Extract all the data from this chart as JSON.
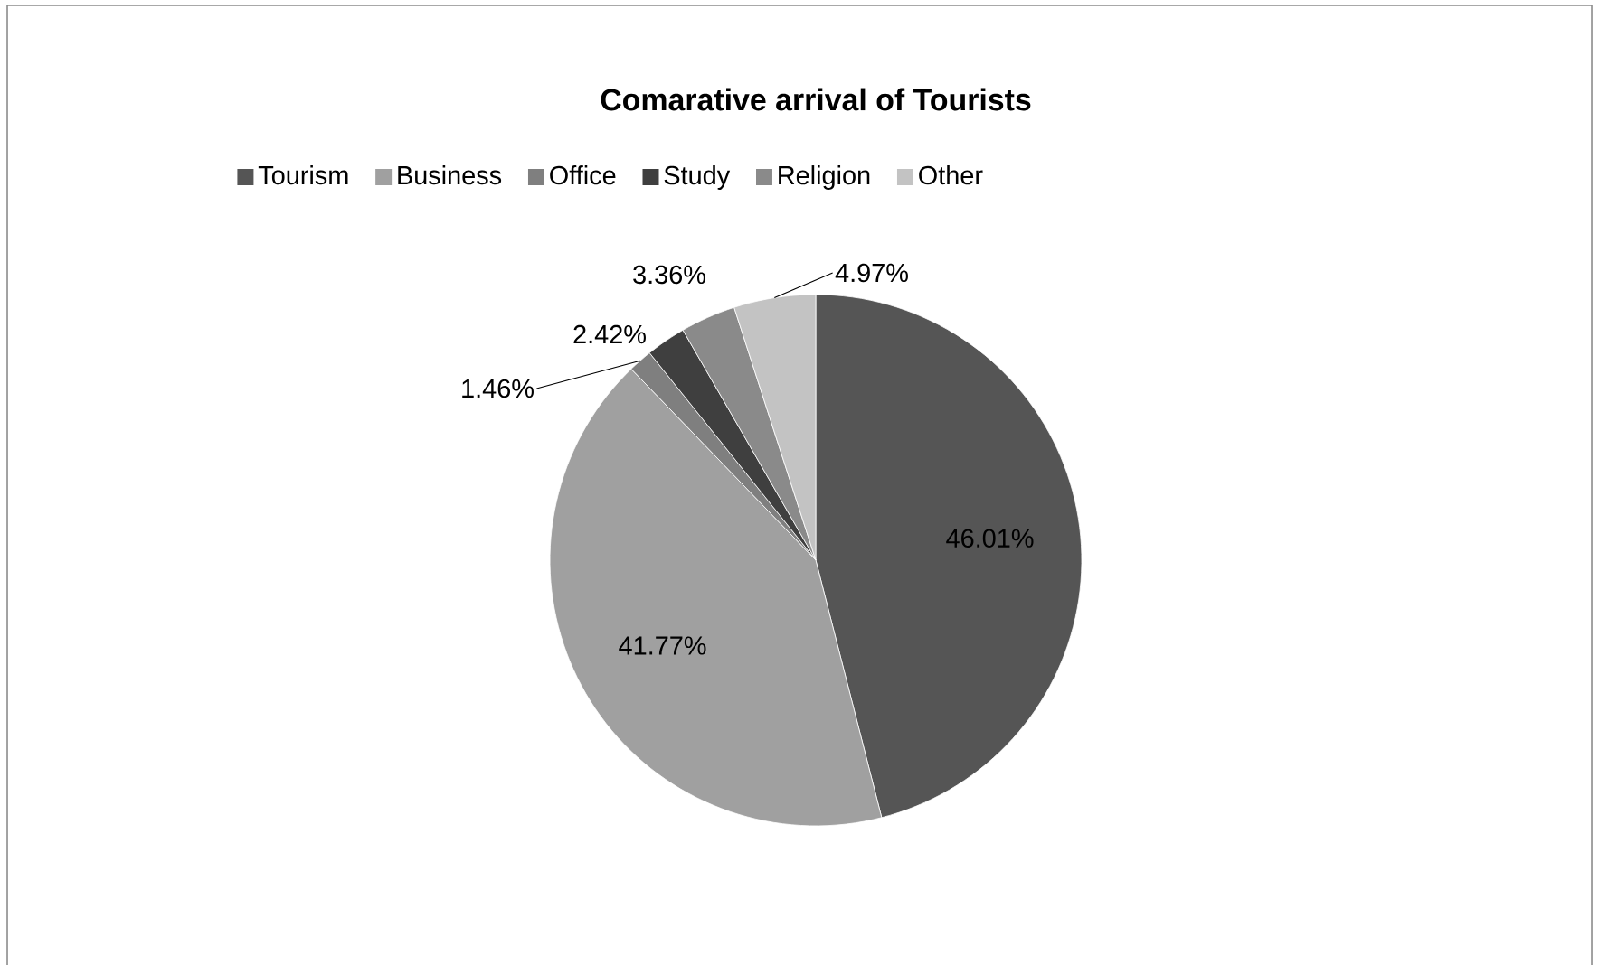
{
  "chart_data": {
    "type": "pie",
    "title": "Comarative arrival of Tourists",
    "categories": [
      "Tourism",
      "Business",
      "Office",
      "Study",
      "Religion",
      "Other"
    ],
    "values": [
      46.01,
      41.77,
      1.46,
      2.42,
      3.36,
      4.97
    ],
    "colors": [
      "#555555",
      "#a0a0a0",
      "#7f7f7f",
      "#3f3f3f",
      "#8a8a8a",
      "#c3c3c3"
    ],
    "value_labels": [
      "46.01%",
      "41.77%",
      "1.46%",
      "2.42%",
      "3.36%",
      "4.97%"
    ],
    "legend": "top"
  }
}
